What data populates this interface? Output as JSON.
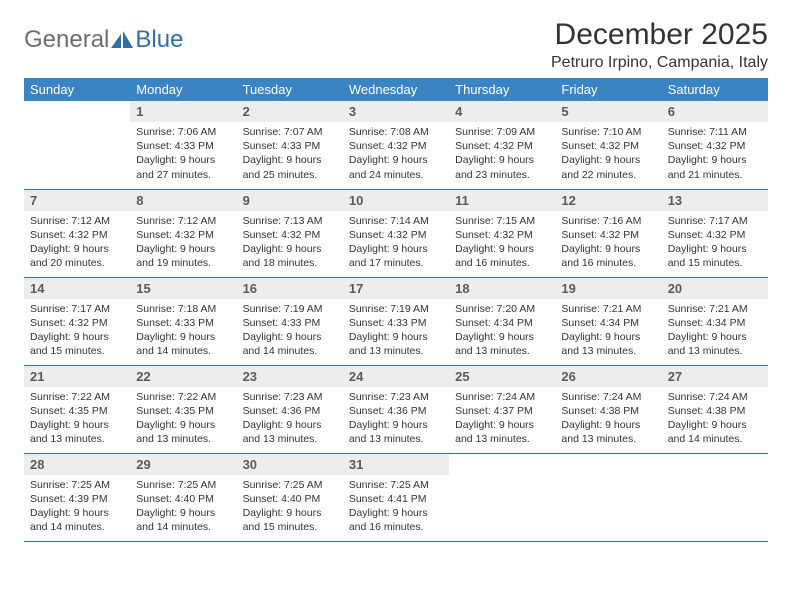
{
  "logo": {
    "word1": "General",
    "word2": "Blue",
    "color_gray": "#6d6d6d",
    "color_blue": "#2f6fa7"
  },
  "title": "December 2025",
  "subtitle": "Petruro Irpino, Campania, Italy",
  "header_bg": "#3b84c4",
  "header_fg": "#ffffff",
  "daynum_bg": "#eceded",
  "row_border": "#2f6fa7",
  "weekdays": [
    "Sunday",
    "Monday",
    "Tuesday",
    "Wednesday",
    "Thursday",
    "Friday",
    "Saturday"
  ],
  "weeks": [
    [
      {
        "n": "",
        "sr": "",
        "ss": "",
        "dl": ""
      },
      {
        "n": "1",
        "sr": "7:06 AM",
        "ss": "4:33 PM",
        "dl": "9 hours and 27 minutes."
      },
      {
        "n": "2",
        "sr": "7:07 AM",
        "ss": "4:33 PM",
        "dl": "9 hours and 25 minutes."
      },
      {
        "n": "3",
        "sr": "7:08 AM",
        "ss": "4:32 PM",
        "dl": "9 hours and 24 minutes."
      },
      {
        "n": "4",
        "sr": "7:09 AM",
        "ss": "4:32 PM",
        "dl": "9 hours and 23 minutes."
      },
      {
        "n": "5",
        "sr": "7:10 AM",
        "ss": "4:32 PM",
        "dl": "9 hours and 22 minutes."
      },
      {
        "n": "6",
        "sr": "7:11 AM",
        "ss": "4:32 PM",
        "dl": "9 hours and 21 minutes."
      }
    ],
    [
      {
        "n": "7",
        "sr": "7:12 AM",
        "ss": "4:32 PM",
        "dl": "9 hours and 20 minutes."
      },
      {
        "n": "8",
        "sr": "7:12 AM",
        "ss": "4:32 PM",
        "dl": "9 hours and 19 minutes."
      },
      {
        "n": "9",
        "sr": "7:13 AM",
        "ss": "4:32 PM",
        "dl": "9 hours and 18 minutes."
      },
      {
        "n": "10",
        "sr": "7:14 AM",
        "ss": "4:32 PM",
        "dl": "9 hours and 17 minutes."
      },
      {
        "n": "11",
        "sr": "7:15 AM",
        "ss": "4:32 PM",
        "dl": "9 hours and 16 minutes."
      },
      {
        "n": "12",
        "sr": "7:16 AM",
        "ss": "4:32 PM",
        "dl": "9 hours and 16 minutes."
      },
      {
        "n": "13",
        "sr": "7:17 AM",
        "ss": "4:32 PM",
        "dl": "9 hours and 15 minutes."
      }
    ],
    [
      {
        "n": "14",
        "sr": "7:17 AM",
        "ss": "4:32 PM",
        "dl": "9 hours and 15 minutes."
      },
      {
        "n": "15",
        "sr": "7:18 AM",
        "ss": "4:33 PM",
        "dl": "9 hours and 14 minutes."
      },
      {
        "n": "16",
        "sr": "7:19 AM",
        "ss": "4:33 PM",
        "dl": "9 hours and 14 minutes."
      },
      {
        "n": "17",
        "sr": "7:19 AM",
        "ss": "4:33 PM",
        "dl": "9 hours and 13 minutes."
      },
      {
        "n": "18",
        "sr": "7:20 AM",
        "ss": "4:34 PM",
        "dl": "9 hours and 13 minutes."
      },
      {
        "n": "19",
        "sr": "7:21 AM",
        "ss": "4:34 PM",
        "dl": "9 hours and 13 minutes."
      },
      {
        "n": "20",
        "sr": "7:21 AM",
        "ss": "4:34 PM",
        "dl": "9 hours and 13 minutes."
      }
    ],
    [
      {
        "n": "21",
        "sr": "7:22 AM",
        "ss": "4:35 PM",
        "dl": "9 hours and 13 minutes."
      },
      {
        "n": "22",
        "sr": "7:22 AM",
        "ss": "4:35 PM",
        "dl": "9 hours and 13 minutes."
      },
      {
        "n": "23",
        "sr": "7:23 AM",
        "ss": "4:36 PM",
        "dl": "9 hours and 13 minutes."
      },
      {
        "n": "24",
        "sr": "7:23 AM",
        "ss": "4:36 PM",
        "dl": "9 hours and 13 minutes."
      },
      {
        "n": "25",
        "sr": "7:24 AM",
        "ss": "4:37 PM",
        "dl": "9 hours and 13 minutes."
      },
      {
        "n": "26",
        "sr": "7:24 AM",
        "ss": "4:38 PM",
        "dl": "9 hours and 13 minutes."
      },
      {
        "n": "27",
        "sr": "7:24 AM",
        "ss": "4:38 PM",
        "dl": "9 hours and 14 minutes."
      }
    ],
    [
      {
        "n": "28",
        "sr": "7:25 AM",
        "ss": "4:39 PM",
        "dl": "9 hours and 14 minutes."
      },
      {
        "n": "29",
        "sr": "7:25 AM",
        "ss": "4:40 PM",
        "dl": "9 hours and 14 minutes."
      },
      {
        "n": "30",
        "sr": "7:25 AM",
        "ss": "4:40 PM",
        "dl": "9 hours and 15 minutes."
      },
      {
        "n": "31",
        "sr": "7:25 AM",
        "ss": "4:41 PM",
        "dl": "9 hours and 16 minutes."
      },
      {
        "n": "",
        "sr": "",
        "ss": "",
        "dl": ""
      },
      {
        "n": "",
        "sr": "",
        "ss": "",
        "dl": ""
      },
      {
        "n": "",
        "sr": "",
        "ss": "",
        "dl": ""
      }
    ]
  ],
  "labels": {
    "sunrise": "Sunrise:",
    "sunset": "Sunset:",
    "daylight": "Daylight:"
  }
}
